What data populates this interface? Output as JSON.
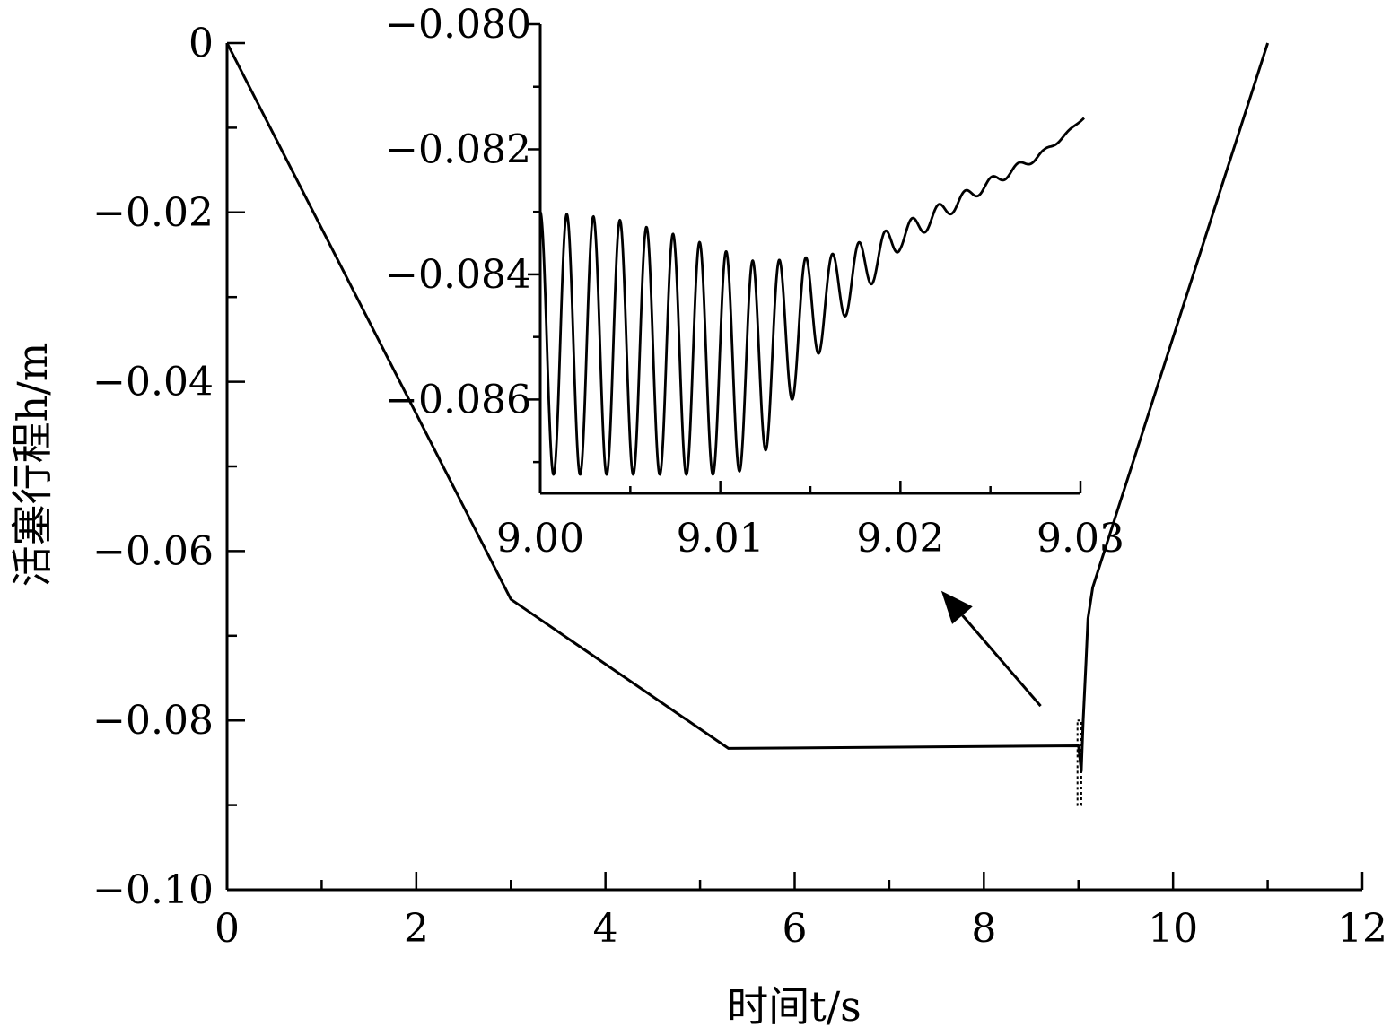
{
  "chart_data": [
    {
      "type": "line",
      "role": "main",
      "xlabel": "时间t/s",
      "ylabel": "活塞行程h/m",
      "xlim": [
        0,
        12
      ],
      "ylim": [
        -0.1,
        0
      ],
      "xticks": [
        0,
        2,
        4,
        6,
        8,
        10,
        12
      ],
      "xtick_labels": [
        "0",
        "2",
        "4",
        "6",
        "8",
        "10",
        "12"
      ],
      "yticks": [
        0,
        -0.02,
        -0.04,
        -0.06,
        -0.08,
        -0.1
      ],
      "ytick_labels": [
        "0",
        "−0.02",
        "−0.04",
        "−0.06",
        "−0.08",
        "−0.10"
      ],
      "grid": false,
      "series": [
        {
          "x": [
            0,
            3.0,
            5.3,
            9.0,
            9.03,
            9.05,
            9.08,
            9.1,
            9.15,
            11.0
          ],
          "y": [
            0,
            -0.0657,
            -0.0833,
            -0.083,
            -0.086,
            -0.08,
            -0.073,
            -0.068,
            -0.0643,
            0
          ]
        }
      ],
      "annotations": [
        {
          "type": "box",
          "x_range": [
            8.99,
            9.03
          ],
          "y_range": [
            -0.09,
            -0.08
          ]
        },
        {
          "type": "arrow",
          "from": [
            8.6,
            -0.0783
          ],
          "to": [
            7.55,
            -0.0647
          ]
        }
      ]
    },
    {
      "type": "line",
      "role": "inset",
      "xlim": [
        9.0,
        9.03
      ],
      "ylim": [
        -0.0875,
        -0.08
      ],
      "xticks": [
        9.0,
        9.01,
        9.02,
        9.03
      ],
      "xtick_labels": [
        "9.00",
        "9.01",
        "9.02",
        "9.03"
      ],
      "yticks": [
        -0.08,
        -0.082,
        -0.084,
        -0.086
      ],
      "ytick_labels": [
        "−0.080",
        "−0.082",
        "−0.084",
        "−0.086"
      ],
      "grid": false,
      "series": [
        {
          "oscillation": {
            "x_start": 9.0,
            "x_end": 9.0302,
            "period": 0.001475,
            "peak_envelope": {
              "x": [
                9.0,
                9.004,
                9.008,
                9.012,
                9.016,
                9.02,
                9.024,
                9.028,
                9.0302
              ],
              "y": [
                -0.083,
                -0.0831,
                -0.0834,
                -0.0838,
                -0.0837,
                -0.0832,
                -0.0826,
                -0.082,
                -0.0815
              ]
            },
            "trough_envelope": {
              "x": [
                9.0,
                9.006,
                9.01,
                9.012,
                9.014,
                9.016,
                9.018,
                9.02,
                9.024,
                9.028,
                9.0302
              ],
              "y": [
                -0.0872,
                -0.0872,
                -0.0872,
                -0.0871,
                -0.086,
                -0.085,
                -0.0843,
                -0.0836,
                -0.0828,
                -0.0821,
                -0.0815
              ]
            }
          }
        }
      ]
    }
  ]
}
